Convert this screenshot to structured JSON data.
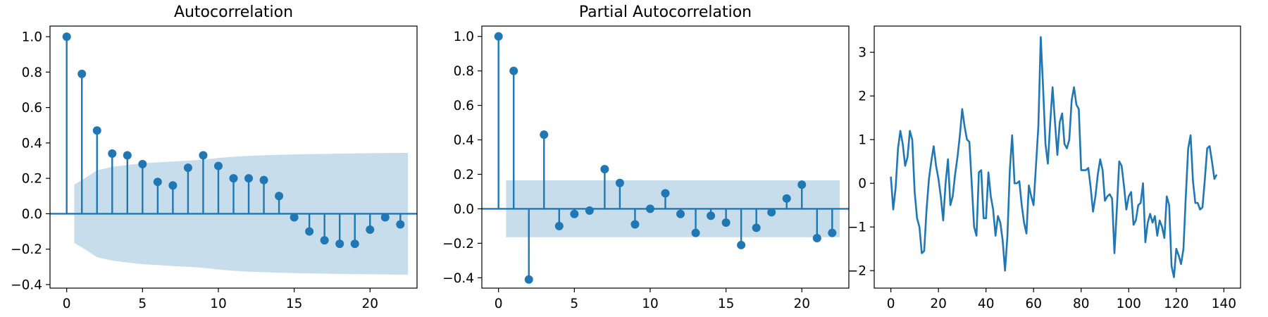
{
  "chart_data": [
    {
      "type": "stem",
      "title": "Autocorrelation",
      "xlim": [
        -1.1,
        23.1
      ],
      "ylim": [
        -0.42,
        1.06
      ],
      "xticks": [
        0,
        5,
        10,
        15,
        20
      ],
      "yticks": [
        -0.4,
        -0.2,
        0.0,
        0.2,
        0.4,
        0.6,
        0.8,
        1.0
      ],
      "ytick_labels": [
        "−0.4",
        "−0.2",
        "0.0",
        "0.2",
        "0.4",
        "0.6",
        "0.8",
        "1.0"
      ],
      "color": "#1f77b4",
      "lags": [
        0,
        1,
        2,
        3,
        4,
        5,
        6,
        7,
        8,
        9,
        10,
        11,
        12,
        13,
        14,
        15,
        16,
        17,
        18,
        19,
        20,
        21,
        22
      ],
      "values": [
        1.0,
        0.79,
        0.47,
        0.34,
        0.33,
        0.28,
        0.18,
        0.16,
        0.26,
        0.33,
        0.27,
        0.2,
        0.2,
        0.19,
        0.1,
        -0.02,
        -0.1,
        -0.15,
        -0.17,
        -0.17,
        -0.09,
        -0.02,
        -0.06
      ],
      "confidence_band": {
        "lags": [
          0.5,
          1,
          2,
          3,
          4,
          5,
          6,
          7,
          8,
          9,
          10,
          11,
          12,
          13,
          14,
          15,
          16,
          17,
          18,
          19,
          20,
          21,
          22,
          22.5
        ],
        "upper": [
          0.165,
          0.19,
          0.245,
          0.265,
          0.275,
          0.285,
          0.29,
          0.295,
          0.3,
          0.305,
          0.315,
          0.322,
          0.327,
          0.33,
          0.333,
          0.335,
          0.337,
          0.338,
          0.34,
          0.341,
          0.342,
          0.343,
          0.344,
          0.344
        ]
      }
    },
    {
      "type": "stem",
      "title": "Partial Autocorrelation",
      "xlim": [
        -1.1,
        23.1
      ],
      "ylim": [
        -0.46,
        1.06
      ],
      "xticks": [
        0,
        5,
        10,
        15,
        20
      ],
      "yticks": [
        -0.4,
        -0.2,
        0.0,
        0.2,
        0.4,
        0.6,
        0.8,
        1.0
      ],
      "ytick_labels": [
        "−0.4",
        "−0.2",
        "0.0",
        "0.2",
        "0.4",
        "0.6",
        "0.8",
        "1.0"
      ],
      "color": "#1f77b4",
      "lags": [
        0,
        1,
        2,
        3,
        4,
        5,
        6,
        7,
        8,
        9,
        10,
        11,
        12,
        13,
        14,
        15,
        16,
        17,
        18,
        19,
        20,
        21,
        22
      ],
      "values": [
        1.0,
        0.8,
        -0.41,
        0.43,
        -0.1,
        -0.03,
        -0.01,
        0.23,
        0.15,
        -0.09,
        0.0,
        0.09,
        -0.03,
        -0.14,
        -0.04,
        -0.08,
        -0.21,
        -0.11,
        -0.02,
        0.06,
        0.14,
        -0.17,
        -0.14
      ],
      "confidence_band": {
        "from": 0.5,
        "to": 22.5,
        "level": 0.165
      }
    },
    {
      "type": "line",
      "title": "",
      "xlim": [
        -7,
        147
      ],
      "ylim": [
        -2.4,
        3.6
      ],
      "xticks": [
        0,
        20,
        40,
        60,
        80,
        100,
        120,
        140
      ],
      "yticks": [
        -2,
        -1,
        0,
        1,
        2,
        3
      ],
      "ytick_labels": [
        "−2",
        "−1",
        "0",
        "1",
        "2",
        "3"
      ],
      "color": "#1f77b4",
      "values": [
        0.15,
        -0.6,
        -0.1,
        0.8,
        1.2,
        0.9,
        0.4,
        0.6,
        1.2,
        1.0,
        -0.2,
        -0.8,
        -1.0,
        -1.6,
        -1.55,
        -0.6,
        0.1,
        0.5,
        0.85,
        0.4,
        0.1,
        -0.3,
        -0.85,
        0.0,
        0.55,
        -0.5,
        -0.3,
        0.2,
        0.6,
        1.1,
        1.7,
        1.3,
        1.0,
        0.95,
        0.0,
        -1.0,
        -1.2,
        0.25,
        0.3,
        -0.8,
        -0.8,
        0.25,
        -0.3,
        -0.6,
        -1.2,
        -0.75,
        -0.9,
        -1.3,
        -2.0,
        -1.2,
        0.3,
        1.1,
        0.0,
        0.0,
        0.05,
        -0.5,
        -0.9,
        -1.15,
        -0.05,
        -0.3,
        -0.5,
        0.4,
        1.3,
        3.35,
        2.2,
        0.9,
        0.45,
        1.4,
        2.2,
        1.4,
        0.65,
        1.4,
        1.6,
        0.9,
        0.8,
        1.0,
        1.9,
        2.2,
        1.8,
        1.7,
        0.3,
        0.3,
        0.3,
        0.35,
        -0.1,
        -0.65,
        -0.3,
        0.2,
        0.55,
        0.3,
        -0.4,
        -0.3,
        -0.25,
        -0.35,
        -1.6,
        -0.6,
        0.5,
        0.4,
        -0.05,
        -0.6,
        -0.3,
        -0.2,
        -0.95,
        -0.85,
        -0.5,
        -0.45,
        0.0,
        -1.35,
        -0.9,
        -0.7,
        -0.9,
        -0.75,
        -1.2,
        -0.85,
        -1.0,
        -1.25,
        -0.3,
        -0.5,
        -1.9,
        -2.15,
        -1.5,
        -1.65,
        -1.85,
        -1.5,
        -0.3,
        0.8,
        1.1,
        0.05,
        -0.45,
        -0.45,
        -0.6,
        -0.55,
        0.1,
        0.8,
        0.85,
        0.5,
        0.1,
        0.2
      ]
    }
  ]
}
